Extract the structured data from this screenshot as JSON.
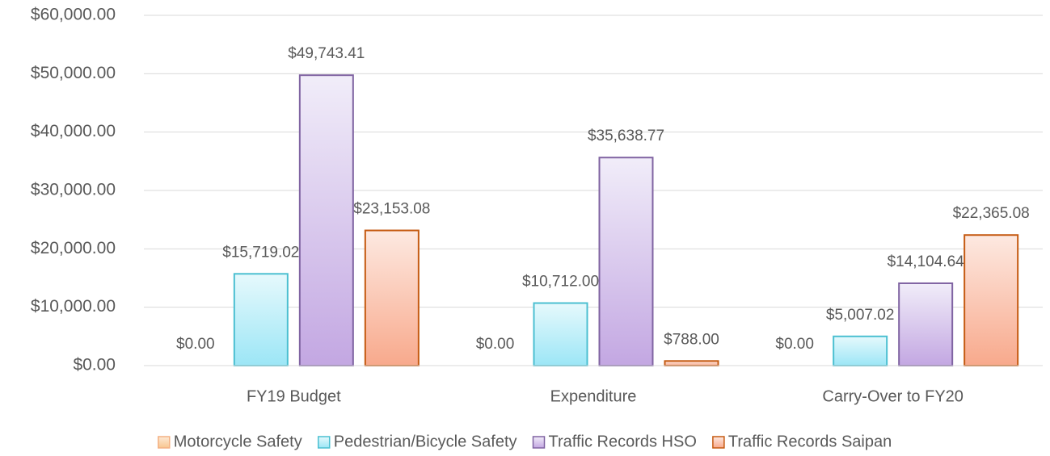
{
  "chart_data": {
    "type": "bar",
    "categories": [
      "FY19 Budget",
      "Expenditure",
      "Carry-Over to FY20"
    ],
    "series": [
      {
        "name": "Motorcycle Safety",
        "color": "#f4b183",
        "fill_top": "#fde9d5",
        "fill_bottom": "#f8c690",
        "values": [
          0,
          0,
          0
        ],
        "value_labels": [
          "$0.00",
          "$0.00",
          "$0.00"
        ]
      },
      {
        "name": "Pedestrian/Bicycle Safety",
        "color": "#4bbfd1",
        "fill_top": "#e6f9fc",
        "fill_bottom": "#9ce6f6",
        "values": [
          15719.02,
          10712,
          5007.02
        ],
        "value_labels": [
          "$15,719.02",
          "$10,712.00",
          "$5,007.02"
        ]
      },
      {
        "name": "Traffic Records HSO",
        "color": "#8064a2",
        "fill_top": "#f1edf9",
        "fill_bottom": "#c3a7e2",
        "values": [
          49743.41,
          35638.77,
          14104.64
        ],
        "value_labels": [
          "$49,743.41",
          "$35,638.77",
          "$14,104.64"
        ]
      },
      {
        "name": "Traffic Records Saipan",
        "color": "#c55a11",
        "fill_top": "#fde9e1",
        "fill_bottom": "#f8a98c",
        "values": [
          23153.08,
          788,
          22365.08
        ],
        "value_labels": [
          "$23,153.08",
          "$788.00",
          "$22,365.08"
        ]
      }
    ],
    "ylim": [
      0,
      60000
    ],
    "yticks": [
      {
        "value": 0,
        "label": "$0.00"
      },
      {
        "value": 10000,
        "label": "$10,000.00"
      },
      {
        "value": 20000,
        "label": "$20,000.00"
      },
      {
        "value": 30000,
        "label": "$30,000.00"
      },
      {
        "value": 40000,
        "label": "$40,000.00"
      },
      {
        "value": 50000,
        "label": "$50,000.00"
      },
      {
        "value": 60000,
        "label": "$60,000.00"
      }
    ],
    "grid": true,
    "legend": "bottom"
  }
}
